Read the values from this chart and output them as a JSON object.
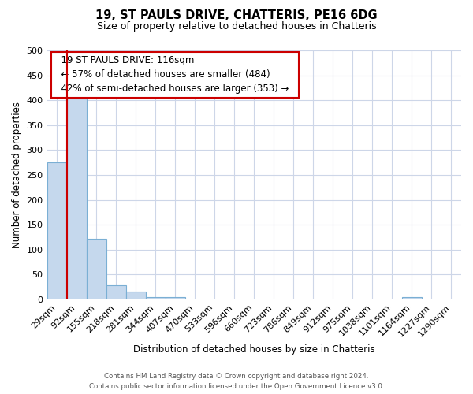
{
  "title": "19, ST PAULS DRIVE, CHATTERIS, PE16 6DG",
  "subtitle": "Size of property relative to detached houses in Chatteris",
  "xlabel": "Distribution of detached houses by size in Chatteris",
  "ylabel": "Number of detached properties",
  "footer_line1": "Contains HM Land Registry data © Crown copyright and database right 2024.",
  "footer_line2": "Contains public sector information licensed under the Open Government Licence v3.0.",
  "bin_labels": [
    "29sqm",
    "92sqm",
    "155sqm",
    "218sqm",
    "281sqm",
    "344sqm",
    "407sqm",
    "470sqm",
    "533sqm",
    "596sqm",
    "660sqm",
    "723sqm",
    "786sqm",
    "849sqm",
    "912sqm",
    "975sqm",
    "1038sqm",
    "1101sqm",
    "1164sqm",
    "1227sqm",
    "1290sqm"
  ],
  "bar_values": [
    275,
    405,
    122,
    29,
    15,
    4,
    5,
    0,
    0,
    0,
    0,
    0,
    0,
    0,
    0,
    0,
    0,
    0,
    5,
    0,
    0
  ],
  "bar_color": "#c5d8ed",
  "bar_edge_color": "#7aafd4",
  "vline_color": "#cc0000",
  "annotation_title": "19 ST PAULS DRIVE: 116sqm",
  "annotation_line1": "← 57% of detached houses are smaller (484)",
  "annotation_line2": "42% of semi-detached houses are larger (353) →",
  "annotation_box_color": "#ffffff",
  "annotation_box_edge_color": "#cc0000",
  "ylim": [
    0,
    500
  ],
  "yticks": [
    0,
    50,
    100,
    150,
    200,
    250,
    300,
    350,
    400,
    450,
    500
  ],
  "background_color": "#ffffff",
  "grid_color": "#cdd6e8"
}
